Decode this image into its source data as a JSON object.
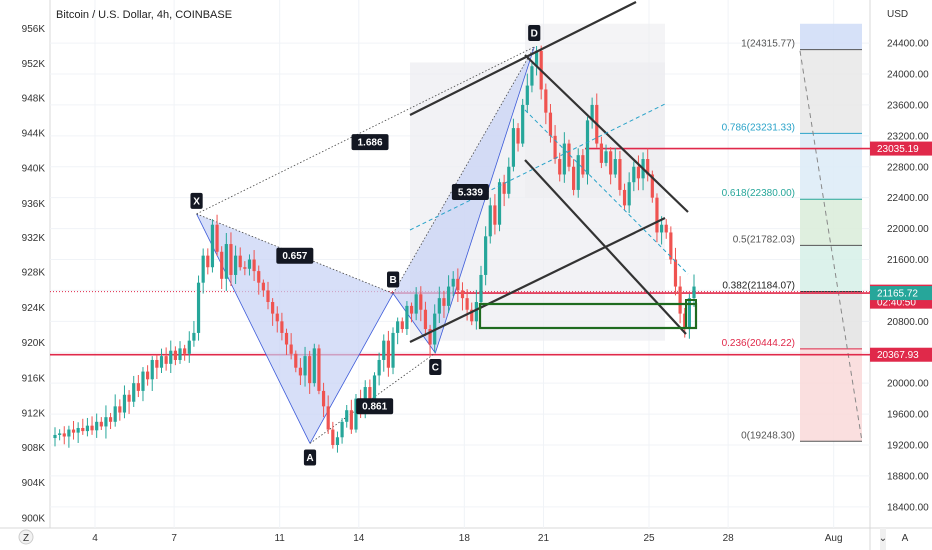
{
  "title": "Bitcoin / U.S. Dollar, 4h, COINBASE",
  "chart_data": {
    "type": "candlestick",
    "left_axis": {
      "ticks": [
        {
          "label": "956K",
          "v": 24580
        },
        {
          "label": "952K",
          "v": 24130
        },
        {
          "label": "948K",
          "v": 23680
        },
        {
          "label": "944K",
          "v": 23230
        },
        {
          "label": "940K",
          "v": 22780
        },
        {
          "label": "936K",
          "v": 22320
        },
        {
          "label": "932K",
          "v": 21880
        },
        {
          "label": "928K",
          "v": 21430
        },
        {
          "label": "924K",
          "v": 20970
        },
        {
          "label": "920K",
          "v": 20520
        },
        {
          "label": "916K",
          "v": 20060
        },
        {
          "label": "912K",
          "v": 19610
        },
        {
          "label": "908K",
          "v": 19160
        },
        {
          "label": "904K",
          "v": 18710
        },
        {
          "label": "900K",
          "v": 18250
        }
      ]
    },
    "right_axis": {
      "unit": "USD",
      "ticks": [
        "24400.00",
        "24000.00",
        "23600.00",
        "23200.00",
        "22800.00",
        "22400.00",
        "22000.00",
        "21600.00",
        "21200.00",
        "20800.00",
        "20400.00",
        "20000.00",
        "19600.00",
        "19200.00",
        "18800.00",
        "18400.00"
      ],
      "tick_values": [
        24400,
        24000,
        23600,
        23200,
        22800,
        22400,
        22000,
        21600,
        21200,
        20800,
        20400,
        20000,
        19600,
        19200,
        18800,
        18400
      ],
      "range": [
        18250,
        24650
      ]
    },
    "x_axis": {
      "ticks": [
        {
          "label": "4",
          "day": 4
        },
        {
          "label": "7",
          "day": 7
        },
        {
          "label": "11",
          "day": 11
        },
        {
          "label": "14",
          "day": 14
        },
        {
          "label": "18",
          "day": 18
        },
        {
          "label": "21",
          "day": 21
        },
        {
          "label": "25",
          "day": 25
        },
        {
          "label": "28",
          "day": 28
        },
        {
          "label": "Aug",
          "day": 32
        }
      ]
    },
    "price_tags": [
      {
        "label": "23035.19",
        "value": 23035.19,
        "color": "#e0294a"
      },
      {
        "label": "21184.21",
        "value": 21184.21,
        "color": "#e0294a",
        "sub": "02:40:50"
      },
      {
        "label": "21165.72",
        "value": 21165.72,
        "color": "#26a69a"
      },
      {
        "label": "20367.93",
        "value": 20367.93,
        "color": "#e0294a"
      }
    ],
    "fib_levels": [
      {
        "label": "1(24315.77)",
        "value": 24315.77
      },
      {
        "label": "0.786(23231.33)",
        "value": 23231.33
      },
      {
        "label": "0.618(22380.00)",
        "value": 22380.0
      },
      {
        "label": "0.5(21782.03)",
        "value": 21782.03
      },
      {
        "label": "0.382(21184.07)",
        "value": 21184.07
      },
      {
        "label": "0.236(20444.22)",
        "value": 20444.22
      },
      {
        "label": "0(19248.30)",
        "value": 19248.3
      }
    ],
    "pattern_points": [
      {
        "label": "X",
        "day": 7.85,
        "value": 22190
      },
      {
        "label": "A",
        "day": 12.15,
        "value": 19220
      },
      {
        "label": "B",
        "day": 15.3,
        "value": 21160
      },
      {
        "label": "C",
        "day": 16.9,
        "value": 20390
      },
      {
        "label": "D",
        "day": 20.65,
        "value": 24350
      }
    ],
    "ratios": [
      "0.657",
      "0.861",
      "5.339",
      "1.686"
    ],
    "horizontal_lines": [
      {
        "value": 23035.19,
        "color": "#e0294a"
      },
      {
        "value": 21165.72,
        "color": "#e0294a"
      },
      {
        "value": 20367.93,
        "color": "#e0294a"
      }
    ],
    "candles_close": [
      19330,
      19350,
      19310,
      19400,
      19360,
      19420,
      19380,
      19450,
      19390,
      19500,
      19440,
      19560,
      19500,
      19700,
      19620,
      19850,
      19760,
      20000,
      19900,
      20150,
      20050,
      20300,
      20200,
      20350,
      20250,
      20420,
      20300,
      20450,
      20380,
      20550,
      20650,
      21300,
      21650,
      21500,
      22050,
      21700,
      21350,
      21800,
      21400,
      21650,
      21500,
      21480,
      21600,
      21450,
      21300,
      21200,
      21050,
      20900,
      20800,
      20650,
      20500,
      20380,
      20200,
      20100,
      20350,
      20000,
      20450,
      19900,
      19700,
      19400,
      19200,
      19300,
      19500,
      19650,
      19400,
      19800,
      19600,
      19950,
      19750,
      20100,
      20300,
      20550,
      20200,
      20650,
      20800,
      20700,
      21000,
      20900,
      21150,
      20950,
      20700,
      20500,
      20900,
      21100,
      21000,
      21250,
      21350,
      21200,
      21100,
      20950,
      20800,
      21050,
      21400,
      21900,
      22300,
      22050,
      22600,
      22450,
      22800,
      23300,
      23100,
      23600,
      23850,
      24100,
      24300,
      23800,
      23500,
      23200,
      22900,
      22700,
      23100,
      22800,
      22500,
      22950,
      22700,
      23400,
      23600,
      23100,
      22850,
      23000,
      22700,
      22900,
      22500,
      22300,
      22600,
      22800,
      22650,
      22900,
      22700,
      22400,
      21950,
      22050,
      21950,
      21600,
      21250,
      20900,
      20700,
      21100,
      21250
    ]
  }
}
